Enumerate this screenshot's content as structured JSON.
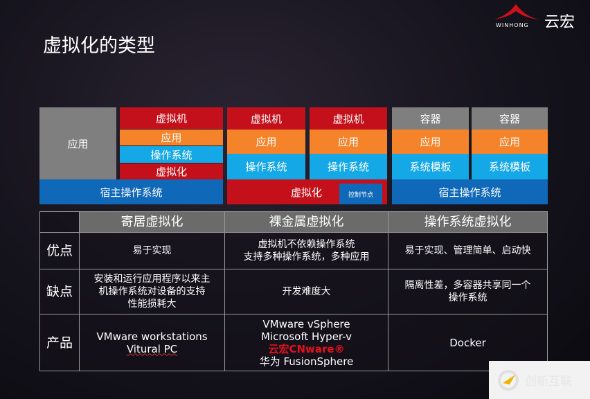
{
  "title": "虚拟化的类型",
  "logo": {
    "en": "WINHONG",
    "cn": "云宏"
  },
  "diagram": {
    "hosted": {
      "app": "应用",
      "vm": "虚拟机",
      "vm_app": "应用",
      "vm_os": "操作系统",
      "virt": "虚拟化",
      "host_os": "宿主操作系统"
    },
    "bare": {
      "vm1": "虚拟机",
      "app1": "应用",
      "os1": "操作系统",
      "vm2": "虚拟机",
      "app2": "应用",
      "os2": "操作系统",
      "virt": "虚拟化",
      "control": "控制节点"
    },
    "os_level": {
      "c1": "容器",
      "app1": "应用",
      "tpl1": "系统模板",
      "c2": "容器",
      "app2": "应用",
      "tpl2": "系统模板",
      "host_os": "宿主操作系统"
    },
    "colors": {
      "red": "#c4101a",
      "orange": "#f5832a",
      "cyan": "#14a8e6",
      "blue": "#1068b8",
      "gray": "#7f7f7f"
    }
  },
  "table": {
    "headers": [
      "寄居虚拟化",
      "裸金属虚拟化",
      "操作系统虚拟化"
    ],
    "rows": [
      {
        "label": "优点",
        "cells": [
          [
            "易于实现"
          ],
          [
            "虚拟机不依赖操作系统",
            "支持多种操作系统，多种应用"
          ],
          [
            "易于实现、管理简单、启动快"
          ]
        ]
      },
      {
        "label": "缺点",
        "cells": [
          [
            "安装和运行应用程序以来主",
            "机操作系统对设备的支持",
            "性能损耗大"
          ],
          [
            "开发难度大"
          ],
          [
            "隔离性差，多容器共享同一个",
            "操作系统"
          ]
        ]
      },
      {
        "label": "产品",
        "cells": [
          [
            "VMware workstations",
            "Vitural PC"
          ],
          [
            "VMware vSphere",
            "Microsoft Hyper-v",
            "云宏CNware®",
            "华为 FusionSphere"
          ],
          [
            "Docker"
          ]
        ]
      }
    ]
  },
  "watermark": "创新互联"
}
